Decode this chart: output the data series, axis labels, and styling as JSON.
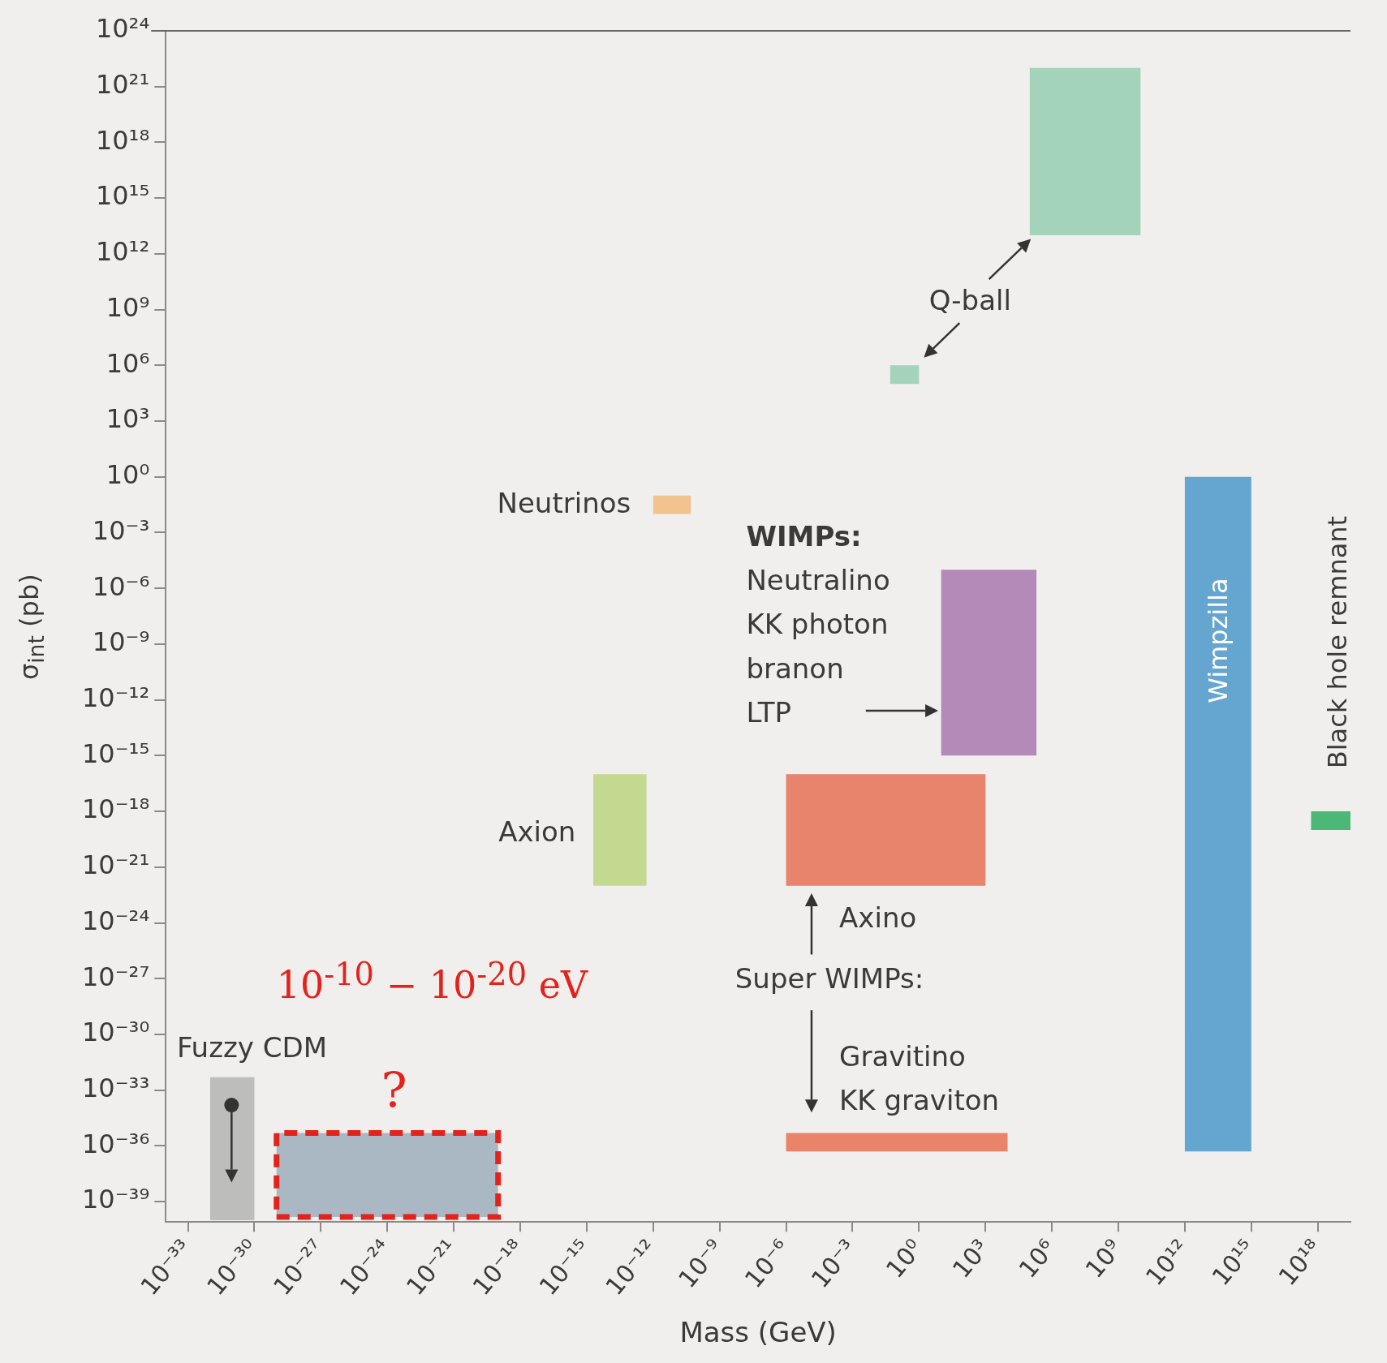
{
  "chart_data": {
    "type": "area",
    "xlabel": "Mass (GeV)",
    "ylabel": "σ$_{int}$ (pb)",
    "log": "xy",
    "grid": false,
    "xlim": [
      1e-34,
      3e+19
    ],
    "ylim": [
      8e-41,
      1e+24
    ],
    "xticks": [
      {
        "value": 1e-33,
        "label": "10⁻³³"
      },
      {
        "value": 1e-30,
        "label": "10⁻³⁰"
      },
      {
        "value": 1e-27,
        "label": "10⁻²⁷"
      },
      {
        "value": 1e-24,
        "label": "10⁻²⁴"
      },
      {
        "value": 1e-21,
        "label": "10⁻²¹"
      },
      {
        "value": 1e-18,
        "label": "10⁻¹⁸"
      },
      {
        "value": 1e-15,
        "label": "10⁻¹⁵"
      },
      {
        "value": 1e-12,
        "label": "10⁻¹²"
      },
      {
        "value": 1e-09,
        "label": "10⁻⁹"
      },
      {
        "value": 1e-06,
        "label": "10⁻⁶"
      },
      {
        "value": 0.001,
        "label": "10⁻³"
      },
      {
        "value": 1,
        "label": "10⁰"
      },
      {
        "value": 1000.0,
        "label": "10³"
      },
      {
        "value": 1000000.0,
        "label": "10⁶"
      },
      {
        "value": 1000000000.0,
        "label": "10⁹"
      },
      {
        "value": 1000000000000.0,
        "label": "10¹²"
      },
      {
        "value": 1000000000000000.0,
        "label": "10¹⁵"
      },
      {
        "value": 1e+18,
        "label": "10¹⁸"
      }
    ],
    "yticks": [
      {
        "value": 1e+24,
        "label": "10²⁴"
      },
      {
        "value": 1e+21,
        "label": "10²¹"
      },
      {
        "value": 1e+18,
        "label": "10¹⁸"
      },
      {
        "value": 1000000000000000.0,
        "label": "10¹⁵"
      },
      {
        "value": 1000000000000.0,
        "label": "10¹²"
      },
      {
        "value": 1000000000.0,
        "label": "10⁹"
      },
      {
        "value": 1000000.0,
        "label": "10⁶"
      },
      {
        "value": 1000.0,
        "label": "10³"
      },
      {
        "value": 1,
        "label": "10⁰"
      },
      {
        "value": 0.001,
        "label": "10⁻³"
      },
      {
        "value": 1e-06,
        "label": "10⁻⁶"
      },
      {
        "value": 1e-09,
        "label": "10⁻⁹"
      },
      {
        "value": 1e-12,
        "label": "10⁻¹²"
      },
      {
        "value": 1e-15,
        "label": "10⁻¹⁵"
      },
      {
        "value": 1e-18,
        "label": "10⁻¹⁸"
      },
      {
        "value": 1e-21,
        "label": "10⁻²¹"
      },
      {
        "value": 1e-24,
        "label": "10⁻²⁴"
      },
      {
        "value": 1e-27,
        "label": "10⁻²⁷"
      },
      {
        "value": 1e-30,
        "label": "10⁻³⁰"
      },
      {
        "value": 1e-33,
        "label": "10⁻³³"
      },
      {
        "value": 1e-36,
        "label": "10⁻³⁶"
      },
      {
        "value": 1e-39,
        "label": "10⁻³⁹"
      }
    ],
    "series": [
      {
        "color": "#a3d4bb",
        "x": [
          100000.0,
          10000000000.0,
          10000000000.0,
          100000.0,
          100000.0
        ],
        "values": [
          10000000000000.0,
          10000000000000.0,
          1e+22,
          1e+22,
          10000000000000.0
        ]
      },
      {
        "color": "#a3d4bb",
        "x": [
          0.05,
          1,
          1,
          0.05,
          0.05
        ],
        "values": [
          100000.0,
          100000.0,
          1000000.0,
          1000000.0,
          100000.0
        ]
      },
      {
        "color": "#f2c38e",
        "x": [
          1e-12,
          5e-11,
          5e-11,
          1e-12,
          1e-12
        ],
        "values": [
          0.01,
          0.01,
          0.1,
          0.1,
          0.01
        ]
      },
      {
        "color": "#b48ab8",
        "x": [
          10,
          200000.0,
          200000.0,
          10,
          10
        ],
        "values": [
          1e-15,
          1e-15,
          1e-05,
          1e-05,
          1e-15
        ]
      },
      {
        "color": "#c3d98f",
        "x": [
          2e-15,
          5e-13,
          5e-13,
          2e-15,
          2e-15
        ],
        "values": [
          1e-22,
          1e-22,
          1e-16,
          1e-16,
          1e-22
        ]
      },
      {
        "color": "#e8836c",
        "x": [
          1e-06,
          1000.0,
          1000.0,
          1e-06,
          1e-06
        ],
        "values": [
          1e-22,
          1e-22,
          1e-16,
          1e-16,
          1e-22
        ]
      },
      {
        "color": "#e9846a",
        "x": [
          1e-06,
          10000.0,
          10000.0,
          1e-06,
          1e-06
        ],
        "values": [
          5e-37,
          5e-37,
          5e-36,
          5e-36,
          5e-37
        ]
      },
      {
        "color": "#64a6cf",
        "x": [
          1000000000000.0,
          1000000000000000.0,
          1000000000000000.0,
          1000000000000.0,
          1000000000000.0
        ],
        "values": [
          5e-37,
          5e-37,
          1,
          1,
          5e-37
        ]
      },
      {
        "color": "#4cb877",
        "x": [
          5e+17,
          3e+19,
          3e+19,
          5e+17,
          5e+17
        ],
        "values": [
          1e-19,
          1e-19,
          1e-18,
          1e-18,
          1e-19
        ]
      },
      {
        "color": "#bdbdbb",
        "x": [
          1e-32,
          1e-30,
          1e-30,
          1e-32,
          1e-32
        ],
        "values": [
          1e-40,
          1e-40,
          5e-33,
          5e-33,
          1e-40
        ]
      },
      {
        "color": "#a9b8c3",
        "line_style": "dashed",
        "x": [
          1e-29,
          1e-19,
          1e-19,
          1e-29,
          1e-29
        ],
        "values": [
          1.5e-40,
          1.5e-40,
          5e-36,
          5e-36,
          1.5e-40
        ]
      }
    ],
    "annotations": [
      "Q-ball",
      "Neutrinos",
      "WIMPs:\nNeutralino\nKK photon\nbranon\nLTP",
      "Axion",
      "Axino",
      "Super WIMPs:",
      "Gravitino\nKK graviton",
      "Fuzzy CDM",
      "10$^{-10}$ − 10$^{-20}$ eV",
      "?",
      "Wimpzilla",
      "Black hole remnant"
    ]
  }
}
